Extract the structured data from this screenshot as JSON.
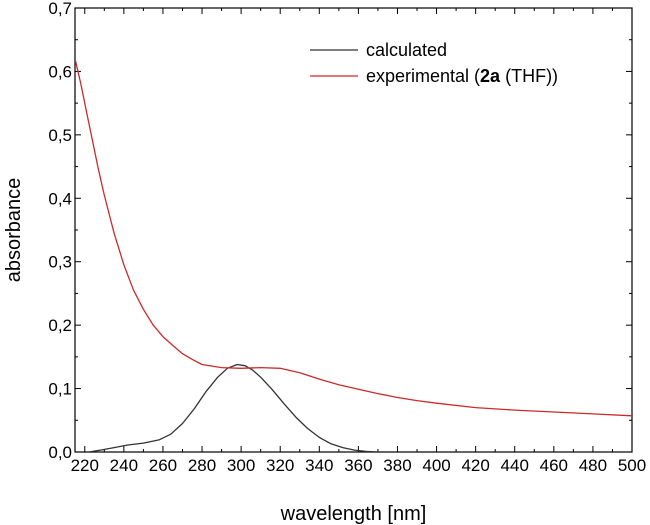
{
  "chart_data": {
    "type": "line",
    "xlabel": "wavelength [nm]",
    "ylabel": "absorbance",
    "xlim": [
      215,
      500
    ],
    "ylim": [
      0,
      0.7
    ],
    "x_ticks": [
      220,
      240,
      260,
      280,
      300,
      320,
      340,
      360,
      380,
      400,
      420,
      440,
      460,
      480,
      500
    ],
    "x_tick_labels": [
      "220",
      "240",
      "260",
      "280",
      "300",
      "320",
      "340",
      "360",
      "380",
      "400",
      "420",
      "440",
      "460",
      "480",
      "500"
    ],
    "y_ticks": [
      0,
      0.1,
      0.2,
      0.3,
      0.4,
      0.5,
      0.6,
      0.7
    ],
    "y_tick_labels": [
      "0,0",
      "0,1",
      "0,2",
      "0,3",
      "0,4",
      "0,5",
      "0,6",
      "0,7"
    ],
    "grid": false,
    "legend_position": "top-right",
    "series": [
      {
        "name": "calculated",
        "color": "#333333",
        "x": [
          222,
          228,
          235,
          242,
          250,
          258,
          264,
          270,
          276,
          282,
          288,
          293,
          298,
          302,
          306,
          310,
          316,
          322,
          328,
          334,
          340,
          346,
          352,
          358,
          364,
          370
        ],
        "y": [
          0.0,
          0.003,
          0.007,
          0.011,
          0.014,
          0.019,
          0.028,
          0.045,
          0.068,
          0.095,
          0.118,
          0.132,
          0.138,
          0.136,
          0.129,
          0.118,
          0.098,
          0.076,
          0.055,
          0.037,
          0.023,
          0.013,
          0.007,
          0.003,
          0.001,
          0.0
        ]
      },
      {
        "name": "experimental",
        "name_bold_part": "2a",
        "name_suffix": "(THF))",
        "color": "#cc2a2a",
        "x": [
          215,
          218,
          221,
          224,
          227,
          230,
          235,
          240,
          245,
          250,
          255,
          260,
          265,
          270,
          275,
          280,
          290,
          300,
          310,
          320,
          330,
          340,
          350,
          360,
          370,
          380,
          390,
          400,
          420,
          440,
          460,
          480,
          500
        ],
        "y": [
          0.62,
          0.58,
          0.535,
          0.49,
          0.445,
          0.405,
          0.345,
          0.295,
          0.255,
          0.225,
          0.2,
          0.182,
          0.168,
          0.155,
          0.146,
          0.138,
          0.133,
          0.132,
          0.133,
          0.132,
          0.125,
          0.115,
          0.106,
          0.099,
          0.092,
          0.086,
          0.081,
          0.077,
          0.07,
          0.066,
          0.063,
          0.06,
          0.057
        ]
      }
    ]
  }
}
